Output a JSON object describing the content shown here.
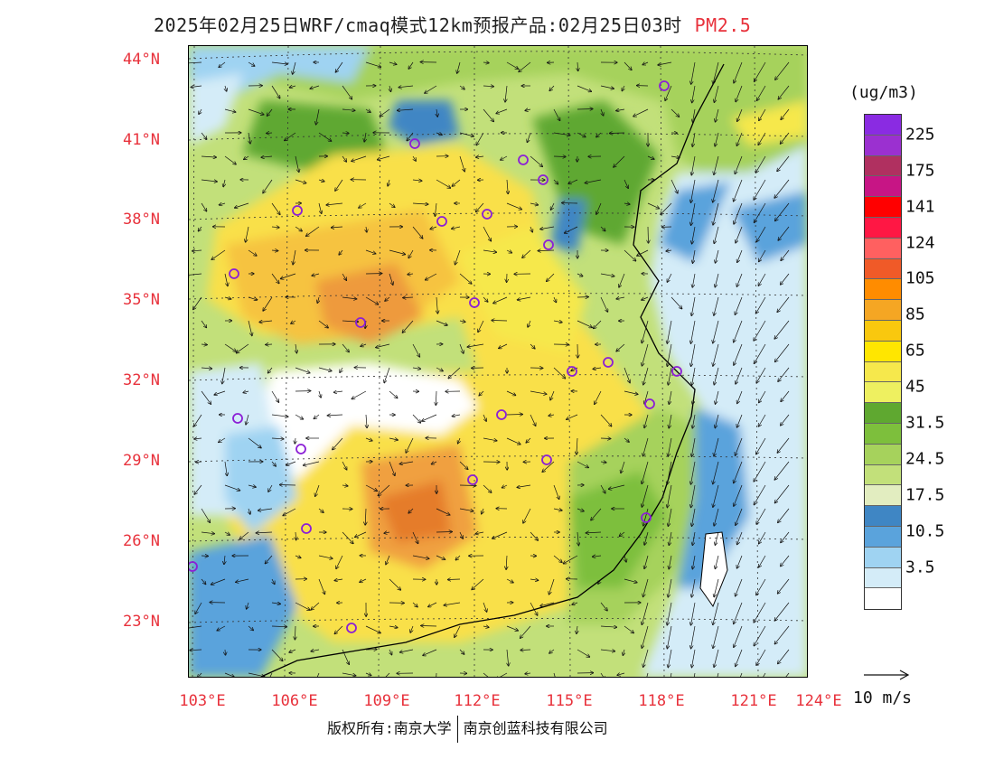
{
  "title": "2025年02月25日WRF/cmaq模式12km预报产品:02月25日03时",
  "pollutant": "PM2.5",
  "lat_labels": [
    "44°N",
    "41°N",
    "38°N",
    "35°N",
    "32°N",
    "29°N",
    "26°N",
    "23°N"
  ],
  "lon_labels": [
    "103°E",
    "106°E",
    "109°E",
    "112°E",
    "115°E",
    "118°E",
    "121°E",
    "124°E"
  ],
  "colorbar": {
    "unit": "(ug/m3)",
    "colors": [
      "#8a2be2",
      "#9b30d0",
      "#b03060",
      "#c71585",
      "#ff0000",
      "#ff1744",
      "#ff6060",
      "#f05a28",
      "#ff8c00",
      "#f5a623",
      "#f9c80e",
      "#ffe600",
      "#f6e84c",
      "#eef060",
      "#5fa830",
      "#7dbf3c",
      "#a6d25c",
      "#c2e07a",
      "#e2edc0",
      "#3f86c4",
      "#5aa3dc",
      "#9fd3f2",
      "#d4ecf8",
      "#ffffff"
    ],
    "labels": [
      "225",
      "175",
      "141",
      "124",
      "105",
      "85",
      "65",
      "45",
      "31.5",
      "24.5",
      "17.5",
      "10.5",
      "3.5"
    ]
  },
  "wind_reference": "10 m/s",
  "copyright": {
    "left": "版权所有:南京大学",
    "right": "南京创蓝科技有限公司"
  },
  "stations": 24
}
